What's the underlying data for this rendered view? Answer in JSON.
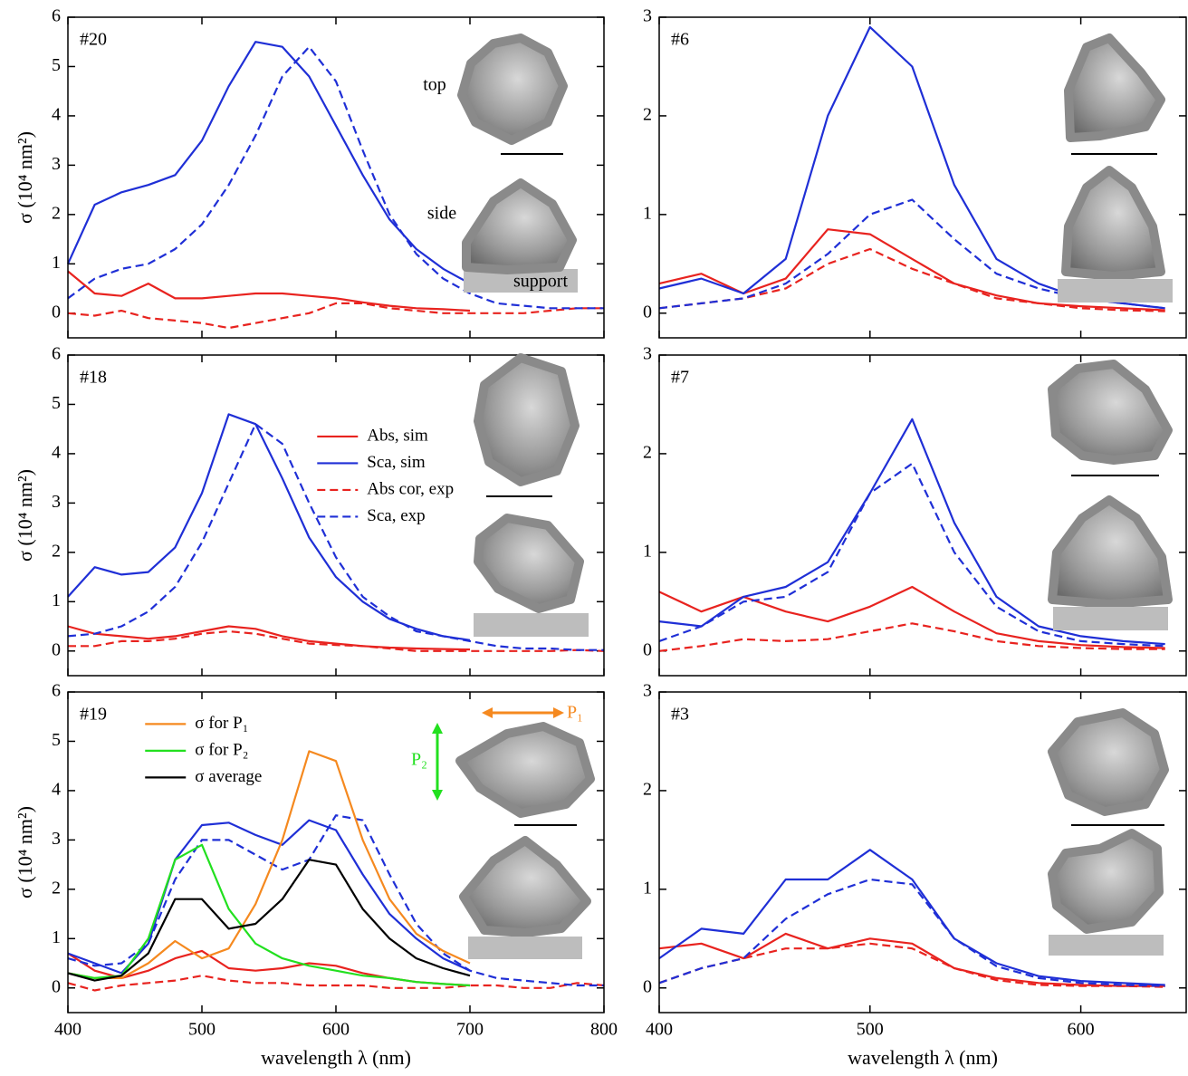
{
  "chart_data": [
    {
      "type": "line",
      "panel_label": "#20",
      "y_label": "σ (10⁴ nm²)",
      "x": [
        400,
        420,
        440,
        460,
        480,
        500,
        520,
        540,
        560,
        580,
        600,
        620,
        640,
        660,
        680,
        700,
        720,
        740,
        760,
        780,
        800
      ],
      "xlim": [
        400,
        800
      ],
      "ylim": [
        -0.5,
        6
      ],
      "xticks": [
        400,
        500,
        600,
        700,
        800
      ],
      "yticks": [
        0,
        1,
        2,
        3,
        4,
        5,
        6
      ],
      "annotations": [
        {
          "text": "top",
          "color": "#000000"
        },
        {
          "text": "side",
          "color": "#000000"
        },
        {
          "text": "support",
          "color": "#000000"
        }
      ],
      "series": [
        {
          "color": "#e8231f",
          "line_style": "solid",
          "values": [
            0.85,
            0.4,
            0.35,
            0.6,
            0.3,
            0.3,
            0.35,
            0.4,
            0.4,
            0.35,
            0.3,
            0.22,
            0.15,
            0.1,
            0.08,
            0.05,
            null,
            null,
            null,
            null,
            null
          ]
        },
        {
          "color": "#1f2fd6",
          "line_style": "solid",
          "values": [
            1.0,
            2.2,
            2.45,
            2.6,
            2.8,
            3.5,
            4.6,
            5.5,
            5.4,
            4.8,
            3.8,
            2.8,
            1.9,
            1.3,
            0.9,
            0.6,
            null,
            null,
            null,
            null,
            null
          ]
        },
        {
          "color": "#e8231f",
          "line_style": "dashed",
          "values": [
            0,
            -0.05,
            0.05,
            -0.1,
            -0.15,
            -0.2,
            -0.3,
            -0.2,
            -0.1,
            0,
            0.2,
            0.2,
            0.1,
            0.05,
            0,
            0,
            0,
            0,
            0.05,
            0.1,
            0.1
          ]
        },
        {
          "color": "#1f2fd6",
          "line_style": "dashed",
          "values": [
            0.3,
            0.7,
            0.9,
            1.0,
            1.3,
            1.8,
            2.6,
            3.6,
            4.8,
            5.4,
            4.7,
            3.3,
            2.0,
            1.2,
            0.7,
            0.4,
            0.2,
            0.15,
            0.1,
            0.1,
            0.1
          ]
        }
      ]
    },
    {
      "type": "line",
      "panel_label": "#6",
      "x": [
        400,
        420,
        440,
        460,
        480,
        500,
        520,
        540,
        560,
        580,
        600,
        620,
        640
      ],
      "xlim": [
        400,
        650
      ],
      "ylim": [
        -0.25,
        3
      ],
      "xticks": [
        400,
        500,
        600
      ],
      "yticks": [
        0,
        1,
        2,
        3
      ],
      "series": [
        {
          "color": "#e8231f",
          "line_style": "solid",
          "values": [
            0.3,
            0.4,
            0.2,
            0.35,
            0.85,
            0.8,
            0.55,
            0.3,
            0.18,
            0.1,
            0.07,
            0.05,
            0.03
          ]
        },
        {
          "color": "#1f2fd6",
          "line_style": "solid",
          "values": [
            0.25,
            0.35,
            0.2,
            0.55,
            2.0,
            2.9,
            2.5,
            1.3,
            0.55,
            0.3,
            0.15,
            0.1,
            0.05
          ]
        },
        {
          "color": "#e8231f",
          "line_style": "dashed",
          "values": [
            0.05,
            0.1,
            0.15,
            0.25,
            0.5,
            0.65,
            0.45,
            0.3,
            0.15,
            0.1,
            0.05,
            0.03,
            0.02
          ]
        },
        {
          "color": "#1f2fd6",
          "line_style": "dashed",
          "values": [
            0.05,
            0.1,
            0.15,
            0.3,
            0.6,
            1.0,
            1.15,
            0.75,
            0.4,
            0.25,
            0.15,
            0.1,
            0.05
          ]
        }
      ]
    },
    {
      "type": "line",
      "panel_label": "#18",
      "y_label": "σ (10⁴ nm²)",
      "legend": "upper center",
      "x": [
        400,
        420,
        440,
        460,
        480,
        500,
        520,
        540,
        560,
        580,
        600,
        620,
        640,
        660,
        680,
        700,
        720,
        740,
        760,
        780,
        800
      ],
      "xlim": [
        400,
        800
      ],
      "ylim": [
        -0.5,
        6
      ],
      "xticks": [
        400,
        500,
        600,
        700,
        800
      ],
      "yticks": [
        0,
        1,
        2,
        3,
        4,
        5,
        6
      ],
      "series": [
        {
          "name": "Abs, sim",
          "color": "#e8231f",
          "line_style": "solid",
          "values": [
            0.5,
            0.35,
            0.3,
            0.25,
            0.3,
            0.4,
            0.5,
            0.45,
            0.3,
            0.2,
            0.15,
            0.1,
            0.07,
            0.05,
            0.04,
            0.03,
            null,
            null,
            null,
            null,
            null
          ]
        },
        {
          "name": "Sca, sim",
          "color": "#1f2fd6",
          "line_style": "solid",
          "values": [
            1.1,
            1.7,
            1.55,
            1.6,
            2.1,
            3.2,
            4.8,
            4.6,
            3.5,
            2.3,
            1.5,
            1.0,
            0.65,
            0.45,
            0.3,
            0.22,
            null,
            null,
            null,
            null,
            null
          ]
        },
        {
          "name": "Abs cor, exp",
          "color": "#e8231f",
          "line_style": "dashed",
          "values": [
            0.1,
            0.1,
            0.2,
            0.2,
            0.25,
            0.35,
            0.4,
            0.35,
            0.25,
            0.15,
            0.12,
            0.1,
            0.05,
            0,
            0,
            0,
            0,
            0,
            0,
            0.02,
            0
          ]
        },
        {
          "name": "Sca, exp",
          "color": "#1f2fd6",
          "line_style": "dashed",
          "values": [
            0.3,
            0.35,
            0.5,
            0.8,
            1.3,
            2.2,
            3.4,
            4.6,
            4.2,
            3.0,
            1.9,
            1.1,
            0.7,
            0.4,
            0.3,
            0.2,
            0.1,
            0.05,
            0.05,
            0.02,
            0.02
          ]
        }
      ]
    },
    {
      "type": "line",
      "panel_label": "#7",
      "x": [
        400,
        420,
        440,
        460,
        480,
        500,
        520,
        540,
        560,
        580,
        600,
        620,
        640
      ],
      "xlim": [
        400,
        650
      ],
      "ylim": [
        -0.25,
        3
      ],
      "xticks": [
        400,
        500,
        600
      ],
      "yticks": [
        0,
        1,
        2,
        3
      ],
      "series": [
        {
          "color": "#e8231f",
          "line_style": "solid",
          "values": [
            0.6,
            0.4,
            0.55,
            0.4,
            0.3,
            0.45,
            0.65,
            0.4,
            0.18,
            0.1,
            0.06,
            0.04,
            0.03
          ]
        },
        {
          "color": "#1f2fd6",
          "line_style": "solid",
          "values": [
            0.3,
            0.25,
            0.55,
            0.65,
            0.9,
            1.6,
            2.35,
            1.3,
            0.55,
            0.25,
            0.15,
            0.1,
            0.07
          ]
        },
        {
          "color": "#e8231f",
          "line_style": "dashed",
          "values": [
            0,
            0.05,
            0.12,
            0.1,
            0.12,
            0.2,
            0.28,
            0.2,
            0.1,
            0.05,
            0.03,
            0.02,
            0.02
          ]
        },
        {
          "color": "#1f2fd6",
          "line_style": "dashed",
          "values": [
            0.1,
            0.25,
            0.5,
            0.55,
            0.8,
            1.6,
            1.9,
            1.0,
            0.45,
            0.2,
            0.1,
            0.07,
            0.05
          ]
        }
      ]
    },
    {
      "type": "line",
      "panel_label": "#19",
      "y_label": "σ (10⁴ nm²)",
      "x_label": "wavelength λ (nm)",
      "legend": "upper left",
      "x": [
        400,
        420,
        440,
        460,
        480,
        500,
        520,
        540,
        560,
        580,
        600,
        620,
        640,
        660,
        680,
        700,
        720,
        740,
        760,
        780,
        800
      ],
      "xlim": [
        400,
        800
      ],
      "ylim": [
        -0.5,
        6
      ],
      "xticks": [
        400,
        500,
        600,
        700,
        800
      ],
      "yticks": [
        0,
        1,
        2,
        3,
        4,
        5,
        6
      ],
      "annotations": [
        {
          "text": "P₁",
          "color": "#f5891f"
        },
        {
          "text": "P₂",
          "color": "#22e01f"
        }
      ],
      "series": [
        {
          "color": "#e8231f",
          "line_style": "solid",
          "values": [
            0.7,
            0.35,
            0.2,
            0.35,
            0.6,
            0.75,
            0.4,
            0.35,
            0.4,
            0.5,
            0.45,
            0.3,
            0.2,
            0.12,
            0.08,
            0.05,
            null,
            null,
            null,
            null,
            null
          ]
        },
        {
          "color": "#1f2fd6",
          "line_style": "solid",
          "values": [
            0.7,
            0.5,
            0.3,
            0.9,
            2.6,
            3.3,
            3.35,
            3.1,
            2.9,
            3.4,
            3.2,
            2.3,
            1.5,
            1.0,
            0.6,
            0.35,
            null,
            null,
            null,
            null,
            null
          ]
        },
        {
          "color": "#e8231f",
          "line_style": "dashed",
          "values": [
            0.1,
            -0.05,
            0.05,
            0.1,
            0.15,
            0.25,
            0.15,
            0.1,
            0.1,
            0.05,
            0.05,
            0.05,
            0,
            0,
            0,
            0.05,
            0.05,
            0,
            0,
            0.1,
            0.05
          ]
        },
        {
          "color": "#1f2fd6",
          "line_style": "dashed",
          "values": [
            0.6,
            0.45,
            0.5,
            0.9,
            2.2,
            3.0,
            3.0,
            2.7,
            2.4,
            2.6,
            3.5,
            3.4,
            2.3,
            1.3,
            0.7,
            0.35,
            0.2,
            0.15,
            0.1,
            0.05,
            0.05
          ]
        },
        {
          "name": "σ for P₁",
          "color": "#f5891f",
          "line_style": "solid",
          "values": [
            0.3,
            0.2,
            0.2,
            0.5,
            0.95,
            0.6,
            0.8,
            1.7,
            3.0,
            4.8,
            4.6,
            3.0,
            1.8,
            1.1,
            0.75,
            0.5,
            null,
            null,
            null,
            null,
            null
          ]
        },
        {
          "name": "σ for P₂",
          "color": "#22e01f",
          "line_style": "solid",
          "values": [
            0.3,
            0.2,
            0.25,
            1.0,
            2.6,
            2.9,
            1.6,
            0.9,
            0.6,
            0.45,
            0.35,
            0.25,
            0.2,
            0.12,
            0.08,
            0.05,
            null,
            null,
            null,
            null,
            null
          ]
        },
        {
          "name": "σ average",
          "color": "#000000",
          "line_style": "solid",
          "values": [
            0.3,
            0.15,
            0.25,
            0.7,
            1.8,
            1.8,
            1.2,
            1.3,
            1.8,
            2.6,
            2.5,
            1.6,
            1.0,
            0.6,
            0.4,
            0.25,
            null,
            null,
            null,
            null,
            null
          ]
        }
      ]
    },
    {
      "type": "line",
      "panel_label": "#3",
      "x_label": "wavelength λ (nm)",
      "x": [
        400,
        420,
        440,
        460,
        480,
        500,
        520,
        540,
        560,
        580,
        600,
        620,
        640
      ],
      "xlim": [
        400,
        650
      ],
      "ylim": [
        -0.25,
        3
      ],
      "xticks": [
        400,
        500,
        600
      ],
      "yticks": [
        0,
        1,
        2,
        3
      ],
      "series": [
        {
          "color": "#e8231f",
          "line_style": "solid",
          "values": [
            0.4,
            0.45,
            0.3,
            0.55,
            0.4,
            0.5,
            0.45,
            0.2,
            0.1,
            0.05,
            0.03,
            0.02,
            0.02
          ]
        },
        {
          "color": "#1f2fd6",
          "line_style": "solid",
          "values": [
            0.3,
            0.6,
            0.55,
            1.1,
            1.1,
            1.4,
            1.1,
            0.5,
            0.25,
            0.12,
            0.07,
            0.05,
            0.03
          ]
        },
        {
          "color": "#e8231f",
          "line_style": "dashed",
          "values": [
            0.05,
            0.2,
            0.3,
            0.4,
            0.4,
            0.45,
            0.4,
            0.2,
            0.08,
            0.03,
            0.02,
            0.02,
            0.01
          ]
        },
        {
          "color": "#1f2fd6",
          "line_style": "dashed",
          "values": [
            0.05,
            0.2,
            0.3,
            0.7,
            0.95,
            1.1,
            1.05,
            0.5,
            0.22,
            0.1,
            0.05,
            0.03,
            0.02
          ]
        }
      ]
    }
  ]
}
